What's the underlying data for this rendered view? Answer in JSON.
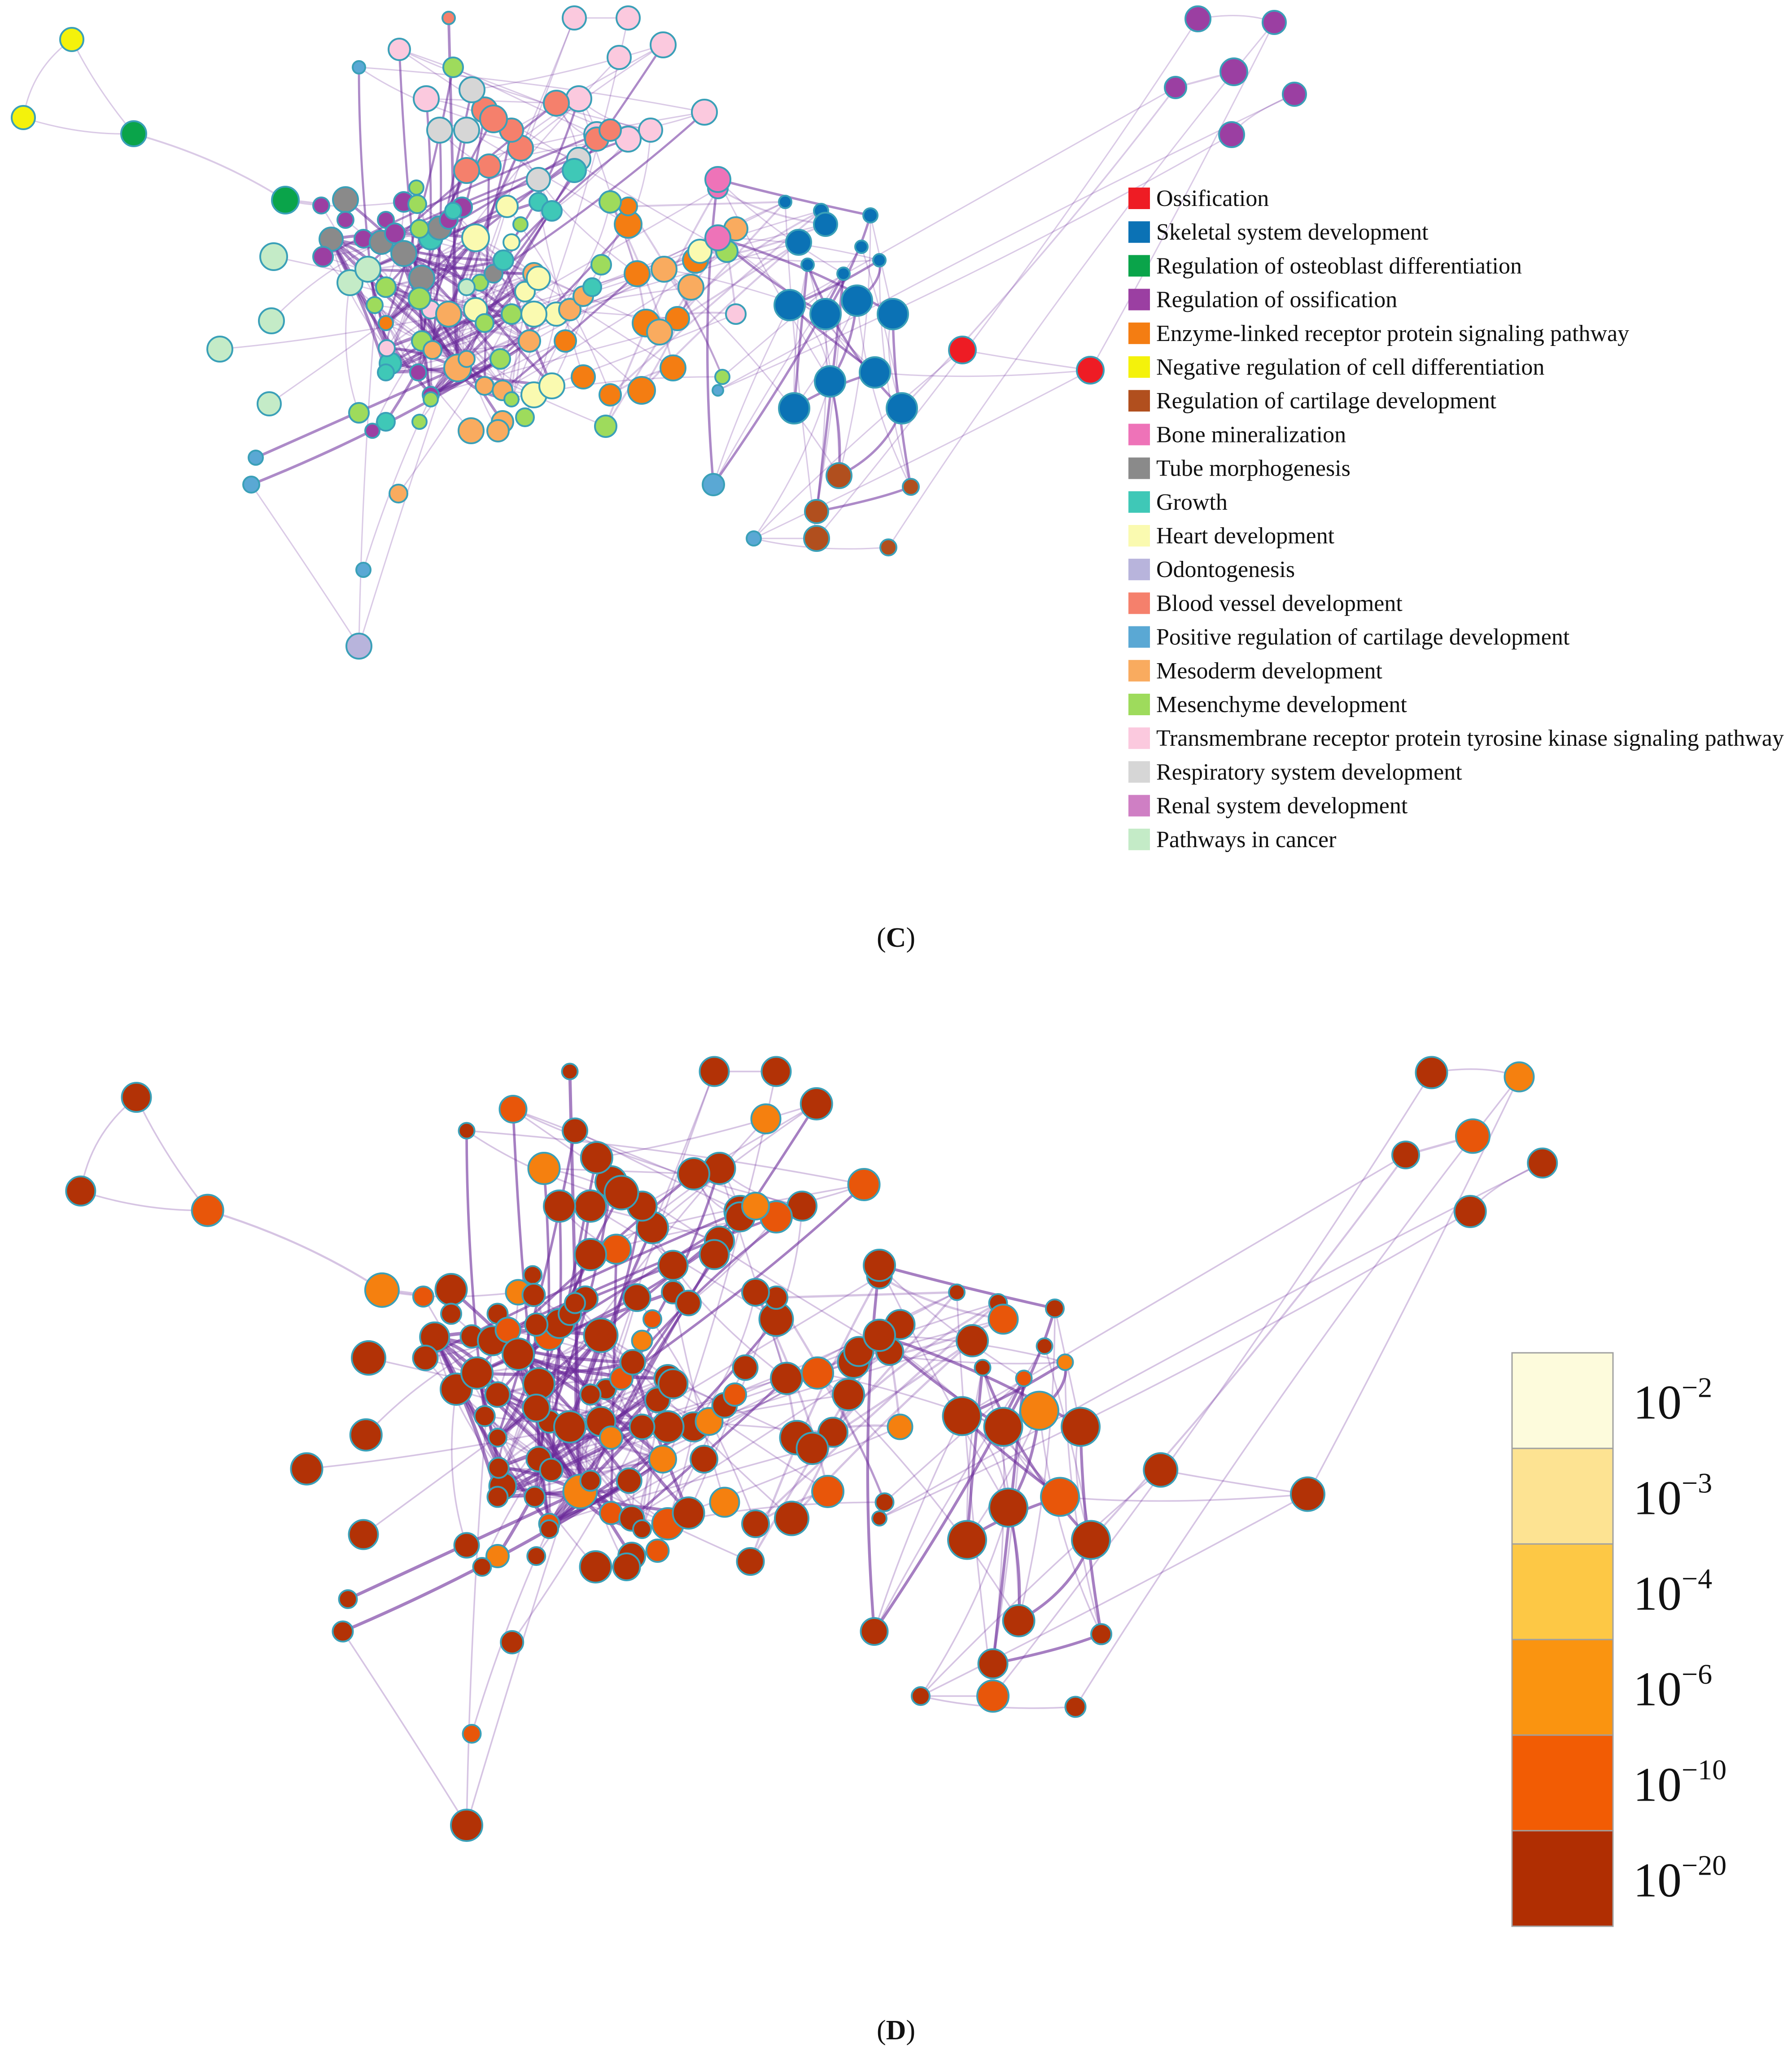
{
  "panel_c": {
    "label_open": "(",
    "label_letter": "C",
    "label_close": ")",
    "legend": [
      {
        "label": "Ossification",
        "color": "#ee1c24"
      },
      {
        "label": "Skeletal system development",
        "color": "#0b72b5"
      },
      {
        "label": "Regulation of osteoblast differentiation",
        "color": "#0aa44a"
      },
      {
        "label": "Regulation of ossification",
        "color": "#9b3fa2"
      },
      {
        "label": "Enzyme-linked receptor protein signaling pathway",
        "color": "#f47d12"
      },
      {
        "label": "Negative regulation of cell differentiation",
        "color": "#f4f20b"
      },
      {
        "label": "Regulation of cartilage development",
        "color": "#b14f1e"
      },
      {
        "label": "Bone mineralization",
        "color": "#ee73b8"
      },
      {
        "label": "Tube morphogenesis",
        "color": "#8a8a8a"
      },
      {
        "label": "Growth",
        "color": "#3fc8b7"
      },
      {
        "label": "Heart development",
        "color": "#fafab0"
      },
      {
        "label": "Odontogenesis",
        "color": "#b8b4dc"
      },
      {
        "label": "Blood vessel development",
        "color": "#f5806c"
      },
      {
        "label": "Positive regulation of cartilage development",
        "color": "#5aa8d4"
      },
      {
        "label": "Mesoderm development",
        "color": "#f9ab5f"
      },
      {
        "label": "Mesenchyme development",
        "color": "#9edb5c"
      },
      {
        "label": "Transmembrane receptor protein tyrosine kinase signaling pathway",
        "color": "#fbc9de"
      },
      {
        "label": "Respiratory system development",
        "color": "#d6d6d6"
      },
      {
        "label": "Renal system development",
        "color": "#cf7fc4"
      },
      {
        "label": "Pathways in cancer",
        "color": "#c4ebc7"
      }
    ]
  },
  "panel_d": {
    "label_open": "(",
    "label_letter": "D",
    "label_close": ")",
    "color_scale": [
      {
        "base": "10",
        "exponent": "−2",
        "color": "#fdfbdc"
      },
      {
        "base": "10",
        "exponent": "−3",
        "color": "#fde392"
      },
      {
        "base": "10",
        "exponent": "−4",
        "color": "#fdc845"
      },
      {
        "base": "10",
        "exponent": "−6",
        "color": "#fa9410"
      },
      {
        "base": "10",
        "exponent": "−10",
        "color": "#f25c04"
      },
      {
        "base": "10",
        "exponent": "−20",
        "color": "#b02e02"
      }
    ]
  },
  "colors": {
    "edge": "#6a2a9a",
    "node_stroke": "#3aa0b8",
    "node_dark": "#b23206",
    "node_mid": "#e8560a",
    "node_light": "#f5800f"
  }
}
